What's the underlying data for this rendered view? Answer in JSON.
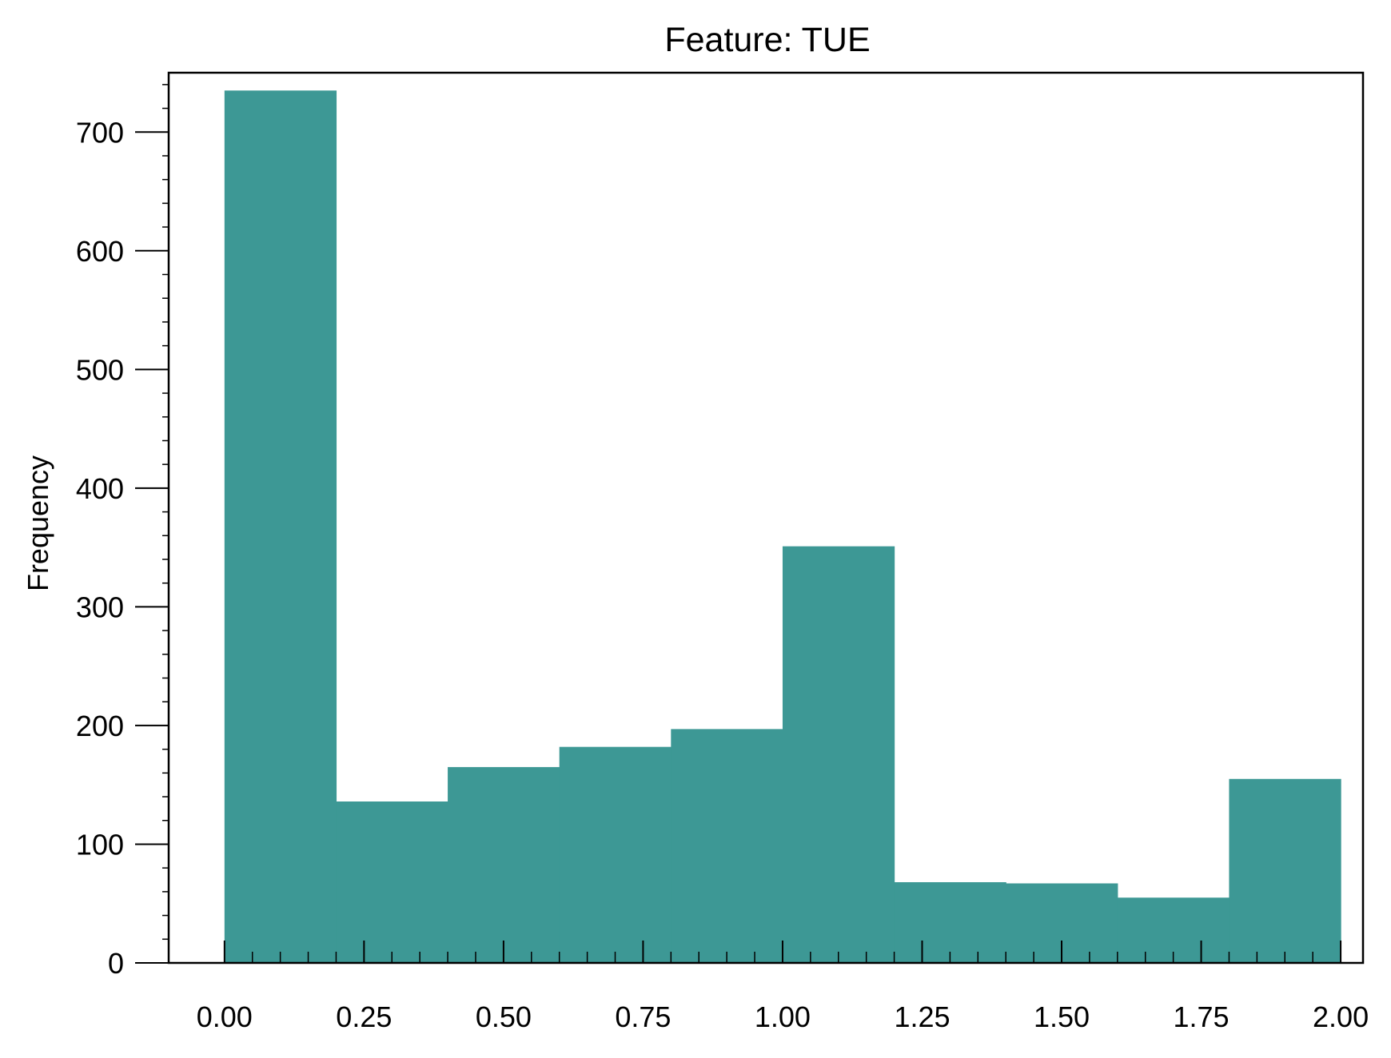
{
  "chart_data": {
    "type": "bar",
    "title": "Feature: TUE",
    "xlabel": "",
    "ylabel": "Frequency",
    "bar_color": "#3d9895",
    "bins": [
      {
        "x0": 0.0,
        "x1": 0.2,
        "count": 735
      },
      {
        "x0": 0.2,
        "x1": 0.4,
        "count": 136
      },
      {
        "x0": 0.4,
        "x1": 0.6,
        "count": 165
      },
      {
        "x0": 0.6,
        "x1": 0.8,
        "count": 182
      },
      {
        "x0": 0.8,
        "x1": 1.0,
        "count": 197
      },
      {
        "x0": 1.0,
        "x1": 1.2,
        "count": 351
      },
      {
        "x0": 1.2,
        "x1": 1.4,
        "count": 68
      },
      {
        "x0": 1.4,
        "x1": 1.6,
        "count": 67
      },
      {
        "x0": 1.6,
        "x1": 1.8,
        "count": 55
      },
      {
        "x0": 1.8,
        "x1": 2.0,
        "count": 155
      }
    ],
    "xlim": [
      -0.1,
      2.04
    ],
    "ylim": [
      0,
      750
    ],
    "x_ticks": [
      {
        "value": 0.0,
        "label": "0.00"
      },
      {
        "value": 0.25,
        "label": "0.25"
      },
      {
        "value": 0.5,
        "label": "0.50"
      },
      {
        "value": 0.75,
        "label": "0.75"
      },
      {
        "value": 1.0,
        "label": "1.00"
      },
      {
        "value": 1.25,
        "label": "1.25"
      },
      {
        "value": 1.5,
        "label": "1.50"
      },
      {
        "value": 1.75,
        "label": "1.75"
      },
      {
        "value": 2.0,
        "label": "2.00"
      }
    ],
    "y_ticks": [
      {
        "value": 0,
        "label": "0"
      },
      {
        "value": 100,
        "label": "100"
      },
      {
        "value": 200,
        "label": "200"
      },
      {
        "value": 300,
        "label": "300"
      },
      {
        "value": 400,
        "label": "400"
      },
      {
        "value": 500,
        "label": "500"
      },
      {
        "value": 600,
        "label": "600"
      },
      {
        "value": 700,
        "label": "700"
      }
    ],
    "x_minor_step": 0.05,
    "y_minor_step": 20,
    "grid": false,
    "legend": null
  }
}
